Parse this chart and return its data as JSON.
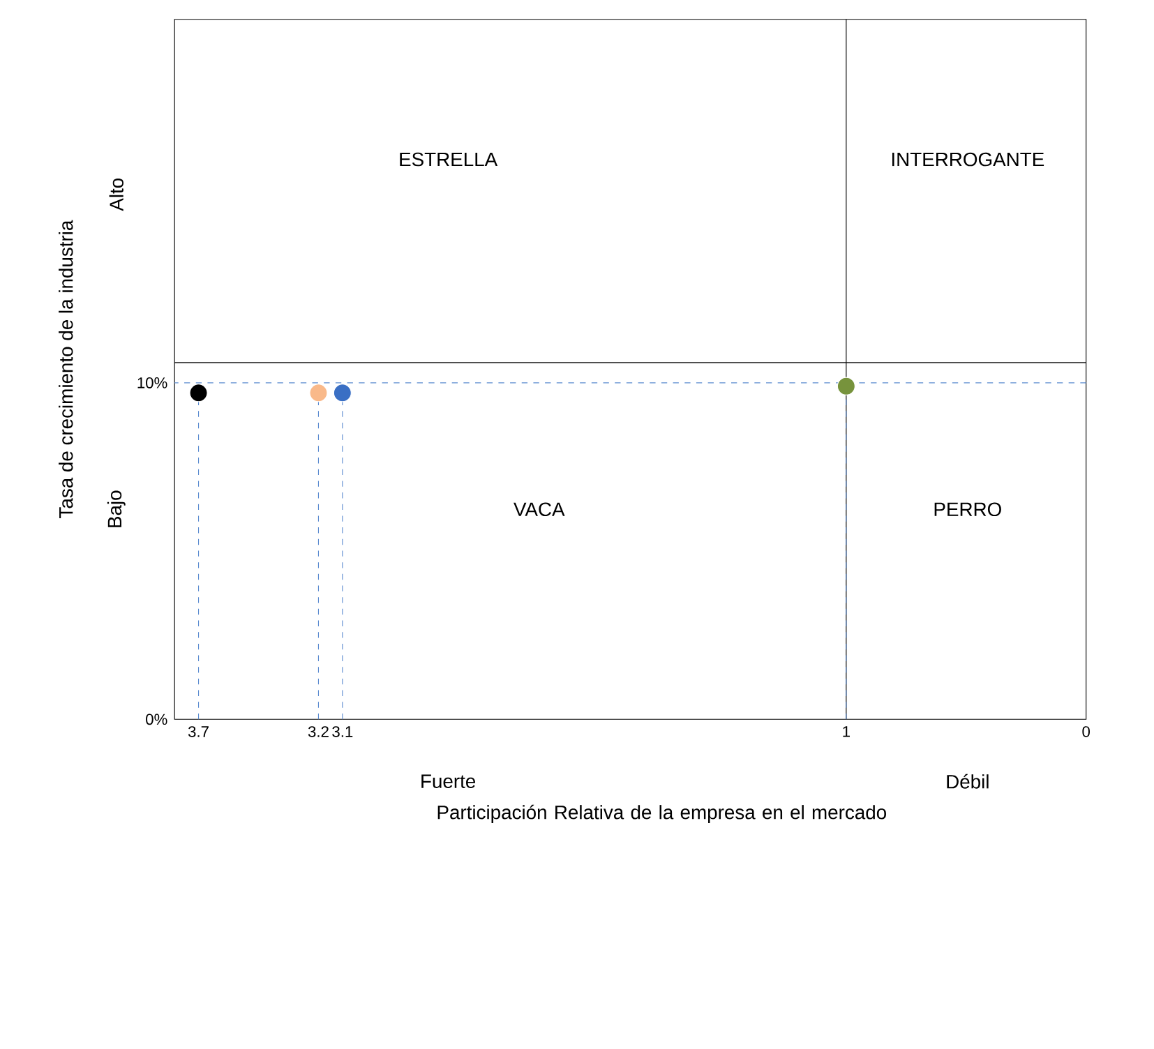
{
  "chart_data": {
    "type": "lollipop",
    "xlabel": "Participación Relativa de la empresa en el mercado",
    "ylabel": "Tasa de crecimiento de la industria",
    "x": [
      3.7,
      3.2,
      3.1,
      1
    ],
    "values": [
      9.7,
      9.7,
      9.7,
      9.9
    ],
    "colors": [
      "#000000",
      "#f9b98a",
      "#3a6fc4",
      "#77933c"
    ],
    "marker": "circle",
    "line_style": "dashed",
    "xlim": [
      3.8,
      0
    ],
    "ylim": [
      0,
      20.8
    ],
    "xticks": [
      3.7,
      3.2,
      3.1,
      1,
      0
    ],
    "yticks": [
      {
        "value": 0,
        "label": "0%"
      },
      {
        "value": 10,
        "label": "10%"
      }
    ],
    "ref_lines": [
      {
        "axis": "y",
        "value": 10,
        "color": "#5b8bd0",
        "line_style": "dashed"
      },
      {
        "axis": "x",
        "value": 1,
        "color": "#000000",
        "line_style": "solid"
      },
      {
        "axis": "y",
        "value": 10.6,
        "color": "#000000",
        "line_style": "solid"
      }
    ],
    "annotations": [
      "ESTRELLA",
      "INTERROGANTE",
      "VACA",
      "PERRO",
      "Alto",
      "Bajo",
      "Fuerte",
      "Débil"
    ]
  }
}
